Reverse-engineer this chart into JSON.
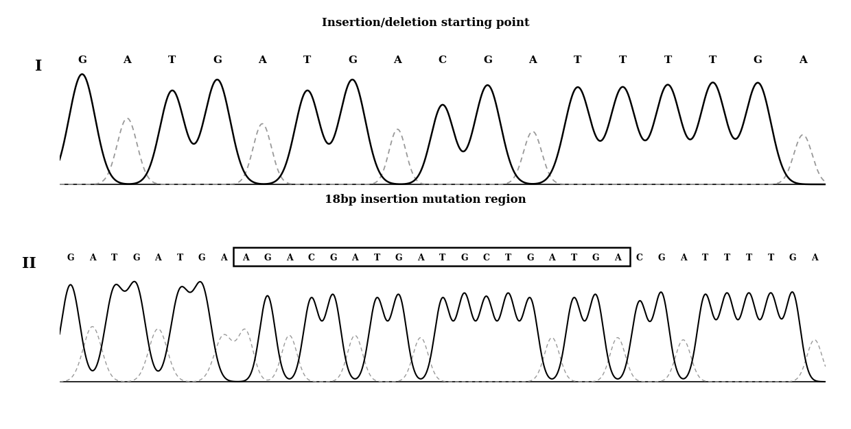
{
  "title1": "Insertion/deletion starting point",
  "title2": "18bp insertion mutation region",
  "seq1_label": "I",
  "seq2_label": "II",
  "seq1_bases": [
    "G",
    "A",
    "T",
    "G",
    "A",
    "T",
    "G",
    "A",
    "C",
    "G",
    "A",
    "T",
    "T",
    "T",
    "T",
    "G",
    "A"
  ],
  "seq2_bases_left": [
    "G",
    "A",
    "T",
    "G",
    "A",
    "T",
    "G",
    "A"
  ],
  "seq2_bases_box": [
    "A",
    "G",
    "A",
    "C",
    "G",
    "A",
    "T",
    "G",
    "A",
    "T",
    "G",
    "C",
    "T",
    "G",
    "A",
    "T",
    "G",
    "A"
  ],
  "seq2_bases_right": [
    "C",
    "G",
    "A",
    "T",
    "T",
    "T",
    "T",
    "G",
    "A"
  ],
  "arrow_base_idx": 8,
  "background_color": "#ffffff",
  "line_color_solid": "#000000",
  "line_color_dashed": "#999999",
  "text_color": "#000000",
  "box_color": "#000000",
  "title1_fontsize": 12,
  "title2_fontsize": 12,
  "label_fontsize": 16,
  "base_fontsize_1": 11,
  "base_fontsize_2": 9
}
